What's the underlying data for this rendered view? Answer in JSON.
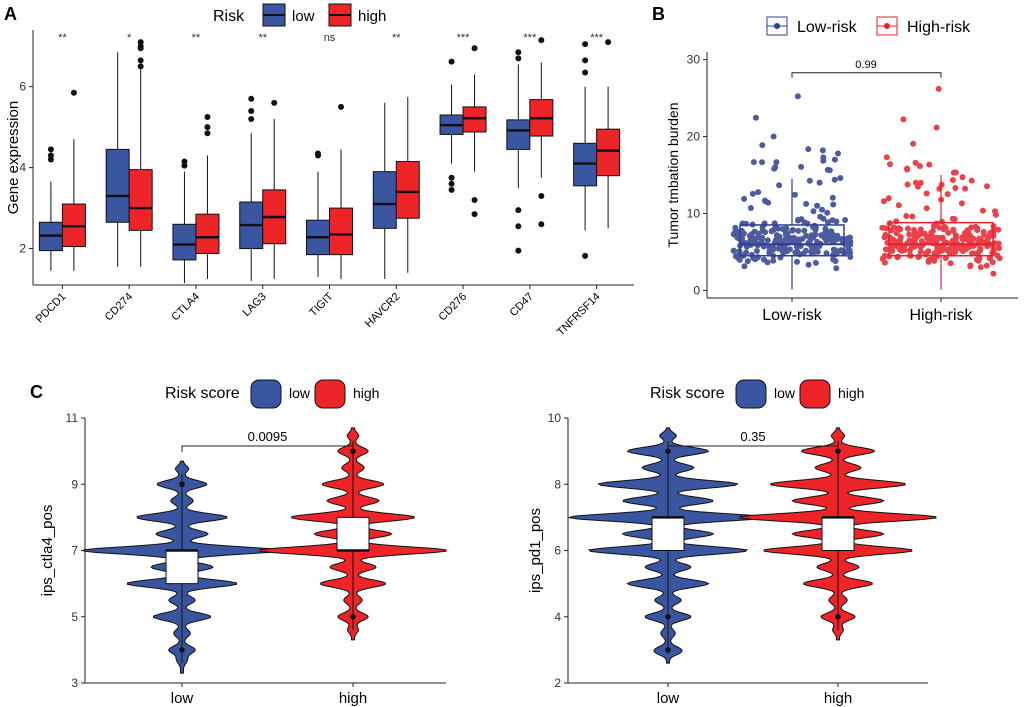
{
  "colors": {
    "low": "#3B56A0",
    "high": "#EE2528",
    "lowRisk": "#2E3F8F",
    "highRisk": "#E8202A"
  },
  "panels": {
    "a": "A",
    "b": "B",
    "c": "C"
  },
  "chart_data": [
    {
      "type": "box",
      "panel": "A",
      "ylabel": "Gene expression",
      "legend_title": "Risk",
      "legend_items": [
        "low",
        "high"
      ],
      "categories": [
        "PDCD1",
        "CD274",
        "CTLA4",
        "LAG3",
        "TIGIT",
        "HAVCR2",
        "CD276",
        "CD47",
        "TNFRSF14"
      ],
      "ylim": [
        1.1,
        7.4
      ],
      "yticks": [
        2,
        4,
        6
      ],
      "significance": [
        "**",
        "*",
        "**",
        "**",
        "ns",
        "**",
        "***",
        "***",
        "***"
      ],
      "series": [
        {
          "name": "low",
          "boxes": [
            {
              "wlo": 1.45,
              "q1": 1.95,
              "med": 2.32,
              "q3": 2.65,
              "whi": 3.65,
              "outliers": [
                4.45,
                4.3,
                4.2
              ]
            },
            {
              "wlo": 1.55,
              "q1": 2.65,
              "med": 3.3,
              "q3": 4.45,
              "whi": 6.85,
              "outliers": []
            },
            {
              "wlo": 1.15,
              "q1": 1.72,
              "med": 2.1,
              "q3": 2.6,
              "whi": 3.9,
              "outliers": [
                4.15,
                4.05
              ]
            },
            {
              "wlo": 1.2,
              "q1": 2.0,
              "med": 2.58,
              "q3": 3.15,
              "whi": 4.85,
              "outliers": [
                5.7,
                5.4,
                5.2
              ]
            },
            {
              "wlo": 1.3,
              "q1": 1.85,
              "med": 2.28,
              "q3": 2.7,
              "whi": 3.9,
              "outliers": [
                4.35,
                4.3
              ]
            },
            {
              "wlo": 1.25,
              "q1": 2.5,
              "med": 3.1,
              "q3": 3.9,
              "whi": 5.6,
              "outliers": []
            },
            {
              "wlo": 4.1,
              "q1": 4.82,
              "med": 5.05,
              "q3": 5.3,
              "whi": 6.05,
              "outliers": [
                6.62,
                3.75,
                3.6,
                3.45
              ]
            },
            {
              "wlo": 3.5,
              "q1": 4.45,
              "med": 4.92,
              "q3": 5.18,
              "whi": 6.55,
              "outliers": [
                6.85,
                6.7,
                2.95,
                2.55,
                1.95
              ]
            },
            {
              "wlo": 2.45,
              "q1": 3.55,
              "med": 4.1,
              "q3": 4.6,
              "whi": 6.0,
              "outliers": [
                7.05,
                6.65,
                6.35,
                1.82
              ]
            }
          ]
        },
        {
          "name": "high",
          "boxes": [
            {
              "wlo": 1.45,
              "q1": 2.05,
              "med": 2.55,
              "q3": 3.1,
              "whi": 4.7,
              "outliers": [
                5.85
              ]
            },
            {
              "wlo": 1.55,
              "q1": 2.45,
              "med": 3.0,
              "q3": 3.95,
              "whi": 6.5,
              "outliers": [
                7.1,
                7.0,
                6.95,
                6.65,
                6.5
              ]
            },
            {
              "wlo": 1.25,
              "q1": 1.88,
              "med": 2.28,
              "q3": 2.85,
              "whi": 4.3,
              "outliers": [
                5.25,
                5.0,
                4.85
              ]
            },
            {
              "wlo": 1.25,
              "q1": 2.12,
              "med": 2.78,
              "q3": 3.45,
              "whi": 5.2,
              "outliers": [
                5.6
              ]
            },
            {
              "wlo": 1.25,
              "q1": 1.85,
              "med": 2.35,
              "q3": 3.0,
              "whi": 4.45,
              "outliers": [
                5.5
              ]
            },
            {
              "wlo": 1.4,
              "q1": 2.75,
              "med": 3.4,
              "q3": 4.15,
              "whi": 5.75,
              "outliers": []
            },
            {
              "wlo": 3.9,
              "q1": 4.88,
              "med": 5.22,
              "q3": 5.5,
              "whi": 6.3,
              "outliers": [
                6.95,
                3.2,
                2.85
              ]
            },
            {
              "wlo": 3.75,
              "q1": 4.78,
              "med": 5.22,
              "q3": 5.68,
              "whi": 6.6,
              "outliers": [
                7.15,
                3.3,
                2.6
              ]
            },
            {
              "wlo": 2.5,
              "q1": 3.8,
              "med": 4.42,
              "q3": 4.95,
              "whi": 6.0,
              "outliers": [
                7.1
              ]
            }
          ]
        }
      ]
    },
    {
      "type": "box-jitter",
      "panel": "B",
      "ylabel": "Tumor tmbation burden",
      "legend_items": [
        "Low-risk",
        "High-risk"
      ],
      "categories": [
        "Low-risk",
        "High-risk"
      ],
      "ylim": [
        -1,
        31
      ],
      "yticks": [
        0,
        10,
        20,
        30
      ],
      "pvalue": "0.99",
      "boxes": [
        {
          "wlo": 0.1,
          "q1": 4.5,
          "med": 6.0,
          "q3": 8.5,
          "whi": 14.5
        },
        {
          "wlo": 0.1,
          "q1": 4.5,
          "med": 6.0,
          "q3": 8.8,
          "whi": 15.0
        }
      ],
      "n_points_per_group": 260
    },
    {
      "type": "violin",
      "panel": "C-left",
      "ylabel": "ips_ctla4_pos",
      "legend_title": "Risk score",
      "legend_items": [
        "low",
        "high"
      ],
      "categories": [
        "low",
        "high"
      ],
      "ylim": [
        3,
        11
      ],
      "yticks": [
        3,
        5,
        7,
        9,
        11
      ],
      "pvalue": "0.0095",
      "groups": [
        {
          "min": 3.3,
          "max": 9.7,
          "modes": [
            [
              3.7,
              0.04
            ],
            [
              4.0,
              0.12
            ],
            [
              4.5,
              0.07
            ],
            [
              5.0,
              0.28
            ],
            [
              5.5,
              0.12
            ],
            [
              6.0,
              0.55
            ],
            [
              6.5,
              0.3
            ],
            [
              7.0,
              1.0
            ],
            [
              7.5,
              0.25
            ],
            [
              8.0,
              0.45
            ],
            [
              8.5,
              0.1
            ],
            [
              9.0,
              0.24
            ],
            [
              9.5,
              0.06
            ]
          ],
          "box": {
            "q1": 6.0,
            "med": 7.0,
            "q3": 7.0
          },
          "outliers": [
            9.0,
            4.0
          ]
        },
        {
          "min": 4.3,
          "max": 10.7,
          "modes": [
            [
              4.6,
              0.04
            ],
            [
              5.0,
              0.14
            ],
            [
              5.5,
              0.08
            ],
            [
              6.0,
              0.32
            ],
            [
              6.5,
              0.22
            ],
            [
              7.0,
              0.95
            ],
            [
              7.5,
              0.38
            ],
            [
              8.0,
              0.62
            ],
            [
              8.5,
              0.25
            ],
            [
              9.0,
              0.3
            ],
            [
              9.5,
              0.1
            ],
            [
              10.0,
              0.14
            ],
            [
              10.5,
              0.05
            ]
          ],
          "box": {
            "q1": 7.0,
            "med": 7.0,
            "q3": 8.0
          },
          "outliers": [
            10.0,
            5.0
          ]
        }
      ]
    },
    {
      "type": "violin",
      "panel": "C-right",
      "ylabel": "ips_pd1_pos",
      "legend_title": "Risk score",
      "legend_items": [
        "low",
        "high"
      ],
      "categories": [
        "low",
        "high"
      ],
      "ylim": [
        2,
        10
      ],
      "yticks": [
        2,
        4,
        6,
        8,
        10
      ],
      "pvalue": "0.35",
      "groups": [
        {
          "min": 2.6,
          "max": 9.7,
          "modes": [
            [
              2.9,
              0.04
            ],
            [
              3.0,
              0.1
            ],
            [
              3.5,
              0.06
            ],
            [
              4.0,
              0.22
            ],
            [
              4.5,
              0.12
            ],
            [
              5.0,
              0.4
            ],
            [
              5.5,
              0.22
            ],
            [
              6.0,
              0.8
            ],
            [
              6.5,
              0.45
            ],
            [
              7.0,
              1.0
            ],
            [
              7.5,
              0.45
            ],
            [
              8.0,
              0.7
            ],
            [
              8.5,
              0.25
            ],
            [
              9.0,
              0.4
            ],
            [
              9.5,
              0.08
            ]
          ],
          "box": {
            "q1": 6.0,
            "med": 7.0,
            "q3": 7.0
          },
          "outliers": [
            9.0,
            4.0,
            3.0
          ]
        },
        {
          "min": 3.3,
          "max": 9.7,
          "modes": [
            [
              3.6,
              0.04
            ],
            [
              4.0,
              0.16
            ],
            [
              4.5,
              0.08
            ],
            [
              5.0,
              0.34
            ],
            [
              5.5,
              0.2
            ],
            [
              6.0,
              0.75
            ],
            [
              6.5,
              0.45
            ],
            [
              7.0,
              1.0
            ],
            [
              7.5,
              0.45
            ],
            [
              8.0,
              0.68
            ],
            [
              8.5,
              0.22
            ],
            [
              9.0,
              0.36
            ],
            [
              9.5,
              0.06
            ]
          ],
          "box": {
            "q1": 6.0,
            "med": 7.0,
            "q3": 7.0
          },
          "outliers": [
            9.0,
            4.0
          ]
        }
      ]
    }
  ]
}
